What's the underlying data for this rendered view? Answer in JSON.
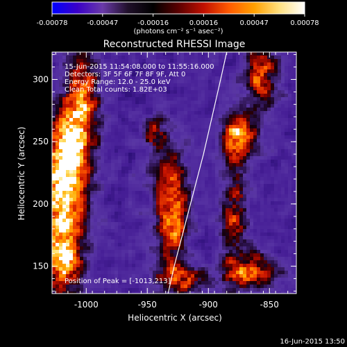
{
  "colorbar": {
    "ticks": [
      "-0.00078",
      "-0.00047",
      "-0.00016",
      "0.00016",
      "0.00047",
      "0.00078"
    ],
    "unit_label": "(photons cm⁻² s⁻¹ asec⁻²)",
    "colormap": [
      "#0000ff",
      "#3a00c8",
      "#6a3aa8",
      "#20102a",
      "#000000",
      "#5a0000",
      "#c01000",
      "#ff5a00",
      "#ffa000",
      "#ffe080",
      "#ffffff"
    ]
  },
  "chart_data": {
    "type": "heatmap",
    "title": "Reconstructed RHESSI Image",
    "xlabel": "Heliocentric X (arcsec)",
    "ylabel": "Heliocentric Y (arcsec)",
    "xlim": [
      -1028,
      -828
    ],
    "ylim": [
      128,
      322
    ],
    "x_ticks": [
      "-1000",
      "-950",
      "-900",
      "-850"
    ],
    "y_ticks": [
      "150",
      "200",
      "250",
      "300"
    ],
    "annotations": [
      "15-Jun-2015 11:54:08.000 to 11:55:16.000",
      "Detectors: 3F 5F 6F 7F 8F 9F, Att 0",
      "Energy Range: 12.0 - 25.0 keV",
      "Clean     Total counts: 1.82E+03"
    ],
    "peak_label": "Position of Peak = [-1013,213]",
    "limb_curve": [
      [
        -933,
        128
      ],
      [
        -928,
        150
      ],
      [
        -920,
        180
      ],
      [
        -912,
        210
      ],
      [
        -904,
        240
      ],
      [
        -897,
        270
      ],
      [
        -890,
        300
      ],
      [
        -885,
        322
      ]
    ],
    "hot_regions": [
      {
        "x": -1018,
        "y": 200,
        "sx": 14,
        "sy": 38,
        "amp": 1.0
      },
      {
        "x": -1004,
        "y": 290,
        "sx": 10,
        "sy": 24,
        "amp": 0.7
      },
      {
        "x": -1012,
        "y": 250,
        "sx": 12,
        "sy": 20,
        "amp": 0.75
      },
      {
        "x": -1020,
        "y": 150,
        "sx": 10,
        "sy": 16,
        "amp": 0.55
      },
      {
        "x": -930,
        "y": 195,
        "sx": 10,
        "sy": 35,
        "amp": 0.85
      },
      {
        "x": -944,
        "y": 255,
        "sx": 6,
        "sy": 10,
        "amp": 0.5
      },
      {
        "x": -875,
        "y": 255,
        "sx": 10,
        "sy": 14,
        "amp": 0.9
      },
      {
        "x": -856,
        "y": 305,
        "sx": 10,
        "sy": 20,
        "amp": 0.7
      },
      {
        "x": -878,
        "y": 190,
        "sx": 8,
        "sy": 28,
        "amp": 0.55
      },
      {
        "x": -865,
        "y": 145,
        "sx": 18,
        "sy": 10,
        "amp": 0.7
      },
      {
        "x": -920,
        "y": 140,
        "sx": 14,
        "sy": 8,
        "amp": 0.55
      }
    ]
  },
  "footer": {
    "timestamp": "16-Jun-2015 13:50"
  }
}
